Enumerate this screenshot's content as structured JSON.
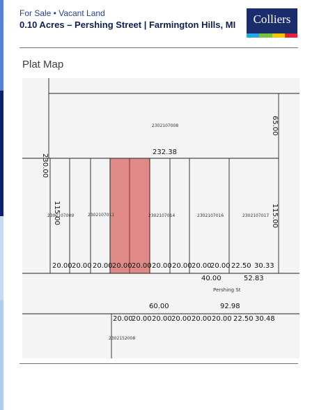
{
  "header": {
    "kicker": "For Sale • Vacant Land",
    "title": "0.10 Acres – Pershing Street | Farmington Hills, MI",
    "logo_text": "Colliers"
  },
  "section": {
    "title": "Plat Map"
  },
  "plat": {
    "parcel_top": "2302107008",
    "parcel_a": "2302107009",
    "parcel_b": "2302107011",
    "parcel_c": "2302107014",
    "parcel_d": "2302107016",
    "parcel_e": "2302107017",
    "parcel_bottom": "2302152008",
    "dim_top": "232.38",
    "dim_left_long": "230.00",
    "dim_right_top": "65.00",
    "dim_right_mid": "115.00",
    "dim_left_mid": "115.00",
    "lot_frontages": [
      "20.00",
      "20.00",
      "20.00",
      "20.00",
      "20.00",
      "20.00",
      "20.00",
      "20.00",
      "20.00"
    ],
    "frontage_c": "22.50",
    "frontage_d": "30.33",
    "dim_40": "40.00",
    "dim_5283": "52.83",
    "street": "Pershing St",
    "dim_60": "60.00",
    "dim_9298": "92.98",
    "south_frontages": [
      "20.00",
      "20.00",
      "20.00",
      "20.00",
      "20.00",
      "20.00",
      "22.50",
      "30.48"
    ]
  },
  "colors": {
    "brand_navy": "#1b2c6a",
    "highlight": "#e08a87",
    "logo_stripes": [
      "#25a7df",
      "#7ac143",
      "#f7c500",
      "#e2233e"
    ]
  }
}
